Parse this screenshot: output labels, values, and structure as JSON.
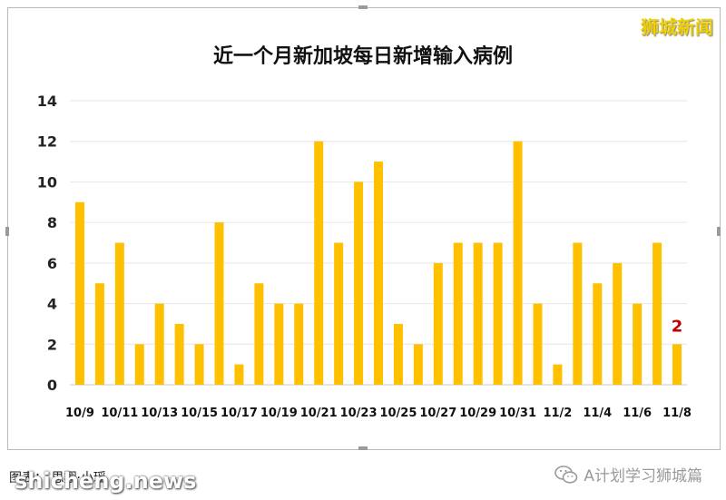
{
  "brand": "狮城新闻",
  "credit": "图表：  思翔·小瑶",
  "watermark": "shicheng.news",
  "wechat_account": "A计划学习狮城篇",
  "colors": {
    "bar": "#FFC000",
    "highlight": "#C00000",
    "grid": "#E6E6E6"
  },
  "icons": {
    "wechat": "wechat-icon"
  },
  "chart_data": {
    "type": "bar",
    "title": "近一个月新加坡每日新增输入病例",
    "categories": [
      "10/9",
      "10/10",
      "10/11",
      "10/12",
      "10/13",
      "10/14",
      "10/15",
      "10/16",
      "10/17",
      "10/18",
      "10/19",
      "10/20",
      "10/21",
      "10/22",
      "10/23",
      "10/24",
      "10/25",
      "10/26",
      "10/27",
      "10/28",
      "10/29",
      "10/30",
      "10/31",
      "11/1",
      "11/2",
      "11/3",
      "11/4",
      "11/5",
      "11/6",
      "11/7",
      "11/8"
    ],
    "x_tick_labels": [
      "10/9",
      "10/11",
      "10/13",
      "10/15",
      "10/17",
      "10/19",
      "10/21",
      "10/23",
      "10/25",
      "10/27",
      "10/29",
      "10/31",
      "11/2",
      "11/4",
      "11/6",
      "11/8"
    ],
    "values": [
      9,
      5,
      7,
      2,
      4,
      3,
      2,
      8,
      1,
      5,
      4,
      4,
      12,
      7,
      10,
      11,
      3,
      2,
      6,
      7,
      7,
      7,
      12,
      4,
      1,
      7,
      5,
      6,
      4,
      7,
      2
    ],
    "ylim": [
      0,
      14
    ],
    "yticks": [
      0,
      2,
      4,
      6,
      8,
      10,
      12,
      14
    ],
    "xlabel": "",
    "ylabel": "",
    "grid": true,
    "annotation": {
      "category": "11/8",
      "text": "2"
    }
  }
}
